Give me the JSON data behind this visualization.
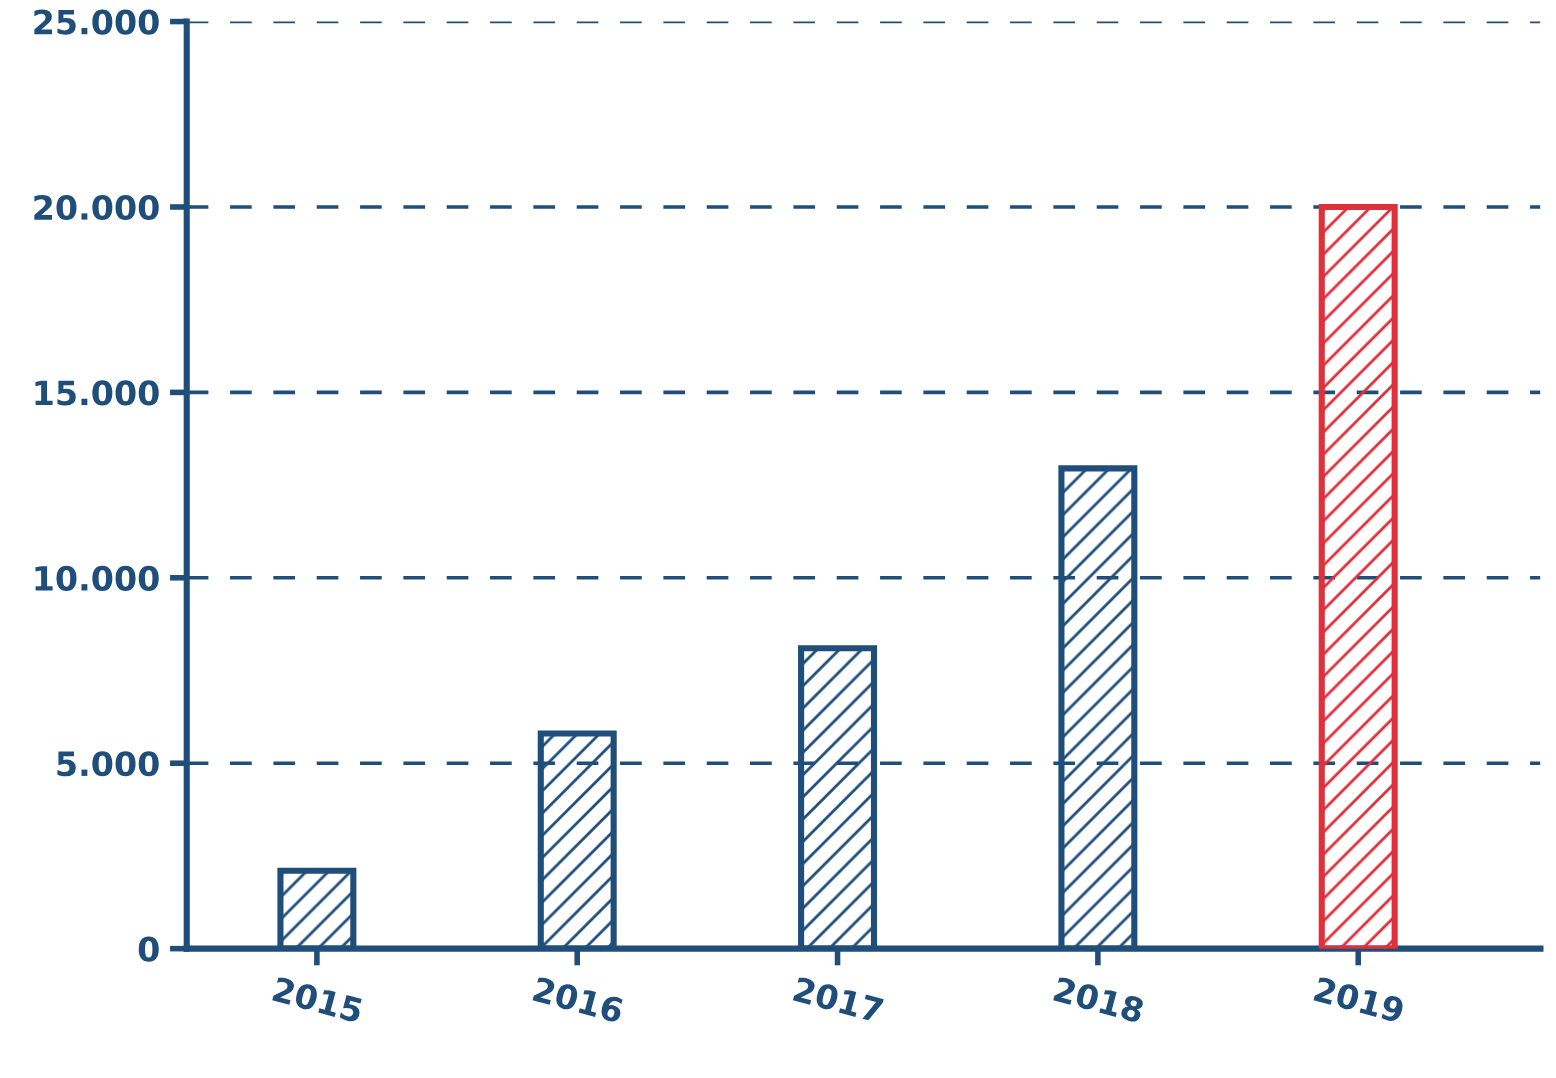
{
  "chart_data": {
    "type": "bar",
    "categories": [
      "2015",
      "2016",
      "2017",
      "2018",
      "2019"
    ],
    "values": [
      2100,
      5800,
      8100,
      12950,
      20000
    ],
    "colors": [
      "#1f4e7a",
      "#1f4e7a",
      "#1f4e7a",
      "#1f4e7a",
      "#e0303c"
    ],
    "ylim": [
      0,
      25000
    ],
    "yticks": [
      {
        "value": 0,
        "label": "0"
      },
      {
        "value": 5000,
        "label": "5.000"
      },
      {
        "value": 10000,
        "label": "10.000"
      },
      {
        "value": 15000,
        "label": "15.000"
      },
      {
        "value": 20000,
        "label": "20.000"
      },
      {
        "value": 25000,
        "label": "25.000"
      }
    ],
    "grid": "y",
    "line_style": "dashed"
  }
}
